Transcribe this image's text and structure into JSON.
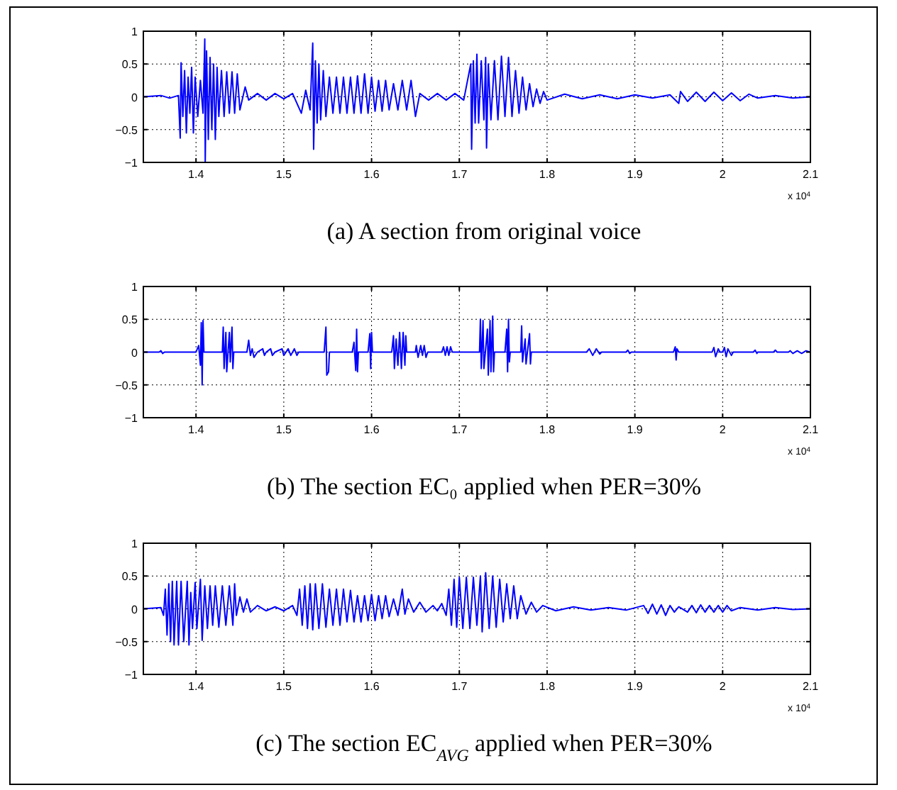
{
  "chart_data": [
    {
      "type": "line",
      "title": "(a) A section from original voice",
      "annotations": [
        "x 10$^{4}$"
      ],
      "xlim": [
        1.34,
        2.1
      ],
      "xticks": [
        1.4,
        1.5,
        1.6,
        1.7,
        1.8,
        1.9,
        2,
        2.1
      ],
      "ylim": [
        -1,
        1
      ],
      "yticks": [
        -1,
        -0.5,
        0,
        0.5,
        1
      ],
      "grid": true,
      "marker": "none",
      "line_style": "solid",
      "series": [
        {
          "color": "#0000ff",
          "x": [
            1.34,
            1.36,
            1.37,
            1.38,
            1.382,
            1.383,
            1.385,
            1.387,
            1.389,
            1.391,
            1.393,
            1.395,
            1.397,
            1.399,
            1.402,
            1.405,
            1.408,
            1.41,
            1.4105,
            1.412,
            1.414,
            1.416,
            1.418,
            1.42,
            1.422,
            1.424,
            1.426,
            1.429,
            1.432,
            1.435,
            1.438,
            1.441,
            1.444,
            1.447,
            1.45,
            1.456,
            1.46,
            1.47,
            1.48,
            1.49,
            1.5,
            1.51,
            1.52,
            1.525,
            1.53,
            1.533,
            1.534,
            1.536,
            1.538,
            1.54,
            1.542,
            1.545,
            1.548,
            1.552,
            1.556,
            1.56,
            1.564,
            1.568,
            1.572,
            1.576,
            1.58,
            1.584,
            1.588,
            1.592,
            1.596,
            1.6,
            1.604,
            1.608,
            1.612,
            1.616,
            1.62,
            1.625,
            1.63,
            1.635,
            1.64,
            1.645,
            1.65,
            1.655,
            1.665,
            1.675,
            1.685,
            1.695,
            1.705,
            1.713,
            1.714,
            1.716,
            1.718,
            1.72,
            1.722,
            1.725,
            1.728,
            1.73,
            1.731,
            1.733,
            1.736,
            1.74,
            1.744,
            1.748,
            1.752,
            1.756,
            1.76,
            1.764,
            1.768,
            1.772,
            1.776,
            1.78,
            1.784,
            1.788,
            1.792,
            1.796,
            1.8,
            1.82,
            1.84,
            1.86,
            1.88,
            1.9,
            1.92,
            1.94,
            1.95,
            1.952,
            1.96,
            1.97,
            1.98,
            1.99,
            2,
            2.01,
            2.02,
            2.03,
            2.04,
            2.06,
            2.08,
            2.1
          ],
          "values": [
            0,
            0.02,
            -0.02,
            0.02,
            -0.63,
            0.52,
            -0.3,
            0.4,
            -0.55,
            0.3,
            -0.25,
            0.45,
            -0.55,
            0.3,
            -0.3,
            0.25,
            -0.25,
            0.88,
            -1,
            0.7,
            -0.65,
            0.6,
            -0.5,
            0.5,
            -0.65,
            0.45,
            -0.3,
            0.4,
            -0.3,
            0.38,
            -0.25,
            0.38,
            -0.25,
            0.35,
            -0.2,
            0.15,
            -0.05,
            0.05,
            -0.05,
            0.05,
            -0.03,
            0.05,
            -0.25,
            0.1,
            -0.2,
            0.82,
            -0.8,
            0.55,
            -0.4,
            0.5,
            -0.35,
            0.4,
            -0.3,
            0.3,
            -0.25,
            0.3,
            -0.25,
            0.3,
            -0.25,
            0.3,
            -0.25,
            0.32,
            -0.25,
            0.35,
            -0.25,
            0.3,
            -0.22,
            0.25,
            -0.22,
            0.25,
            -0.2,
            0.2,
            -0.2,
            0.25,
            -0.2,
            0.25,
            -0.3,
            0.05,
            -0.05,
            0.05,
            -0.05,
            0.05,
            -0.05,
            0.5,
            -0.8,
            0.55,
            -0.4,
            0.65,
            -0.4,
            0.55,
            -0.35,
            0.6,
            -0.78,
            0.5,
            -0.35,
            0.55,
            -0.35,
            0.62,
            -0.3,
            0.6,
            -0.3,
            0.4,
            -0.25,
            0.3,
            -0.2,
            0.2,
            -0.15,
            0.12,
            -0.1,
            0.08,
            -0.05,
            0.04,
            -0.03,
            0.03,
            -0.03,
            0.03,
            -0.02,
            0.03,
            -0.1,
            0.08,
            -0.07,
            0.07,
            -0.07,
            0.07,
            -0.06,
            0.06,
            -0.06,
            0.04,
            -0.02,
            0.02,
            -0.02,
            0
          ]
        }
      ]
    },
    {
      "type": "line",
      "title": "(b) The section EC₀ applied when PER=30%",
      "annotations": [
        "x 10$^{4}$"
      ],
      "xlim": [
        1.34,
        2.1
      ],
      "xticks": [
        1.4,
        1.5,
        1.6,
        1.7,
        1.8,
        1.9,
        2,
        2.1
      ],
      "ylim": [
        -1,
        1
      ],
      "yticks": [
        -1,
        -0.5,
        0,
        0.5,
        1
      ],
      "grid": true,
      "marker": "none",
      "line_style": "solid",
      "series": [
        {
          "color": "#0000ff",
          "x": [
            1.34,
            1.358,
            1.36,
            1.362,
            1.364,
            1.4,
            1.403,
            1.405,
            1.406,
            1.407,
            1.408,
            1.409,
            1.43,
            1.431,
            1.432,
            1.434,
            1.435,
            1.438,
            1.439,
            1.441,
            1.442,
            1.443,
            1.458,
            1.46,
            1.462,
            1.464,
            1.466,
            1.47,
            1.476,
            1.478,
            1.48,
            1.485,
            1.487,
            1.49,
            1.498,
            1.5,
            1.505,
            1.508,
            1.512,
            1.515,
            1.517,
            1.546,
            1.548,
            1.549,
            1.551,
            1.552,
            1.578,
            1.58,
            1.582,
            1.583,
            1.584,
            1.585,
            1.596,
            1.598,
            1.599,
            1.6,
            1.601,
            1.623,
            1.625,
            1.626,
            1.628,
            1.63,
            1.632,
            1.634,
            1.636,
            1.638,
            1.639,
            1.64,
            1.65,
            1.651,
            1.653,
            1.656,
            1.658,
            1.66,
            1.662,
            1.664,
            1.68,
            1.682,
            1.684,
            1.686,
            1.688,
            1.69,
            1.692,
            1.723,
            1.724,
            1.725,
            1.727,
            1.728,
            1.732,
            1.733,
            1.735,
            1.736,
            1.738,
            1.739,
            1.74,
            1.752,
            1.754,
            1.755,
            1.756,
            1.757,
            1.758,
            1.77,
            1.771,
            1.772,
            1.775,
            1.776,
            1.78,
            1.781,
            1.782,
            1.845,
            1.848,
            1.852,
            1.856,
            1.86,
            1.862,
            1.89,
            1.892,
            1.894,
            1.896,
            1.944,
            1.946,
            1.947,
            1.948,
            1.95,
            1.988,
            1.99,
            1.992,
            1.995,
            1.997,
            2,
            2.002,
            2.004,
            2.006,
            2.01,
            2.012,
            2.035,
            2.037,
            2.039,
            2.04,
            2.058,
            2.06,
            2.062,
            2.075,
            2.077,
            2.08,
            2.085,
            2.09,
            2.095,
            2.1
          ],
          "values": [
            0,
            0,
            0.02,
            -0.02,
            0,
            0,
            0.1,
            -0.2,
            0.45,
            -0.5,
            0.48,
            0,
            0,
            0.38,
            -0.25,
            0.3,
            -0.3,
            0.3,
            -0.15,
            0.38,
            -0.25,
            0,
            0,
            0.18,
            -0.05,
            0.05,
            -0.08,
            0,
            0.05,
            -0.05,
            0,
            0.05,
            -0.05,
            0,
            0.05,
            -0.05,
            0.05,
            -0.05,
            0.05,
            -0.05,
            0,
            0,
            0.38,
            -0.35,
            -0.3,
            0,
            0,
            0.15,
            -0.28,
            0.35,
            -0.3,
            0,
            0,
            0.28,
            -0.25,
            0.3,
            0,
            0,
            0.25,
            -0.25,
            0.2,
            -0.2,
            0.3,
            -0.25,
            0.3,
            -0.2,
            0.25,
            0,
            0,
            0.1,
            -0.08,
            0.1,
            -0.05,
            0.1,
            -0.08,
            0,
            0,
            0.08,
            -0.05,
            0.08,
            -0.05,
            0.08,
            0,
            0,
            0.5,
            -0.25,
            0.48,
            -0.25,
            0.35,
            -0.35,
            0.48,
            -0.3,
            0.55,
            -0.3,
            0,
            0,
            0.35,
            -0.3,
            0.5,
            -0.15,
            0,
            0,
            0.4,
            -0.15,
            0.2,
            -0.18,
            0.28,
            -0.18,
            0,
            0,
            0.05,
            -0.05,
            0.05,
            -0.03,
            0,
            0,
            0.03,
            -0.02,
            0,
            0,
            0.08,
            -0.12,
            0.05,
            0,
            0,
            0.07,
            -0.07,
            0.05,
            0,
            0,
            0.07,
            -0.07,
            0.05,
            -0.05,
            0,
            0,
            0.03,
            -0.02,
            0,
            0,
            0.03,
            0,
            0,
            0.02,
            -0.02,
            0.02,
            -0.02,
            0.02,
            0
          ]
        }
      ]
    },
    {
      "type": "line",
      "title": "(c) The section EC$_{AVG}$ applied when PER=30%",
      "annotations": [
        "x 10$^{4}$"
      ],
      "xlim": [
        1.34,
        2.1
      ],
      "xticks": [
        1.4,
        1.5,
        1.6,
        1.7,
        1.8,
        1.9,
        2,
        2.1
      ],
      "ylim": [
        -1,
        1
      ],
      "yticks": [
        -1,
        -0.5,
        0,
        0.5,
        1
      ],
      "grid": true,
      "marker": "none",
      "line_style": "solid",
      "series": [
        {
          "color": "#0000ff",
          "x": [
            1.34,
            1.36,
            1.363,
            1.365,
            1.367,
            1.369,
            1.371,
            1.373,
            1.375,
            1.378,
            1.38,
            1.383,
            1.386,
            1.39,
            1.392,
            1.394,
            1.396,
            1.399,
            1.401,
            1.405,
            1.407,
            1.41,
            1.413,
            1.416,
            1.419,
            1.422,
            1.426,
            1.43,
            1.434,
            1.438,
            1.442,
            1.444,
            1.446,
            1.45,
            1.454,
            1.458,
            1.462,
            1.47,
            1.48,
            1.49,
            1.5,
            1.51,
            1.515,
            1.518,
            1.521,
            1.524,
            1.527,
            1.53,
            1.533,
            1.536,
            1.54,
            1.544,
            1.548,
            1.552,
            1.556,
            1.56,
            1.564,
            1.568,
            1.572,
            1.576,
            1.58,
            1.584,
            1.588,
            1.592,
            1.596,
            1.6,
            1.604,
            1.608,
            1.612,
            1.616,
            1.62,
            1.625,
            1.63,
            1.635,
            1.638,
            1.642,
            1.648,
            1.655,
            1.662,
            1.67,
            1.675,
            1.68,
            1.685,
            1.688,
            1.691,
            1.694,
            1.697,
            1.7,
            1.704,
            1.708,
            1.712,
            1.716,
            1.72,
            1.724,
            1.726,
            1.73,
            1.734,
            1.738,
            1.742,
            1.746,
            1.75,
            1.754,
            1.758,
            1.762,
            1.766,
            1.77,
            1.776,
            1.782,
            1.788,
            1.795,
            1.81,
            1.83,
            1.85,
            1.87,
            1.89,
            1.91,
            1.915,
            1.92,
            1.925,
            1.93,
            1.935,
            1.94,
            1.945,
            1.95,
            1.96,
            1.965,
            1.97,
            1.975,
            1.98,
            1.985,
            1.99,
            1.995,
            2,
            2.005,
            2.01,
            2.02,
            2.04,
            2.06,
            2.08,
            2.1
          ],
          "values": [
            0,
            0.02,
            -0.1,
            0.3,
            -0.4,
            0.38,
            -0.5,
            0.42,
            -0.55,
            0.42,
            -0.55,
            0.42,
            -0.5,
            0.42,
            -0.55,
            0.25,
            -0.3,
            0.4,
            -0.3,
            0.45,
            -0.48,
            0.35,
            -0.3,
            0.35,
            -0.25,
            0.35,
            -0.28,
            0.35,
            -0.25,
            0.35,
            -0.25,
            0.38,
            -0.1,
            0.18,
            -0.05,
            0.15,
            -0.05,
            0.05,
            -0.03,
            0.03,
            -0.03,
            0.05,
            -0.1,
            0.3,
            -0.25,
            0.35,
            -0.3,
            0.38,
            -0.32,
            0.38,
            -0.3,
            0.38,
            -0.28,
            0.3,
            -0.25,
            0.3,
            -0.25,
            0.3,
            -0.2,
            0.28,
            -0.2,
            0.2,
            -0.2,
            0.2,
            -0.18,
            0.22,
            -0.18,
            0.2,
            -0.15,
            0.2,
            -0.12,
            0.15,
            -0.1,
            0.3,
            -0.08,
            0.15,
            -0.05,
            0.1,
            -0.05,
            0.05,
            -0.03,
            0.08,
            -0.1,
            0.3,
            -0.25,
            0.45,
            -0.28,
            0.48,
            -0.3,
            0.48,
            -0.3,
            0.48,
            -0.25,
            0.5,
            -0.35,
            0.55,
            -0.3,
            0.5,
            -0.28,
            0.45,
            -0.2,
            0.38,
            -0.15,
            0.35,
            -0.15,
            0.2,
            -0.08,
            0.1,
            -0.05,
            0.05,
            -0.03,
            0.03,
            -0.02,
            0.02,
            -0.02,
            0.05,
            -0.07,
            0.07,
            -0.08,
            0.06,
            -0.1,
            0.05,
            -0.05,
            0.03,
            -0.05,
            0.05,
            -0.06,
            0.06,
            -0.05,
            0.05,
            -0.05,
            0.05,
            -0.05,
            0.05,
            -0.03,
            0.02,
            -0.02,
            0.02,
            -0.01,
            0
          ]
        }
      ]
    }
  ]
}
